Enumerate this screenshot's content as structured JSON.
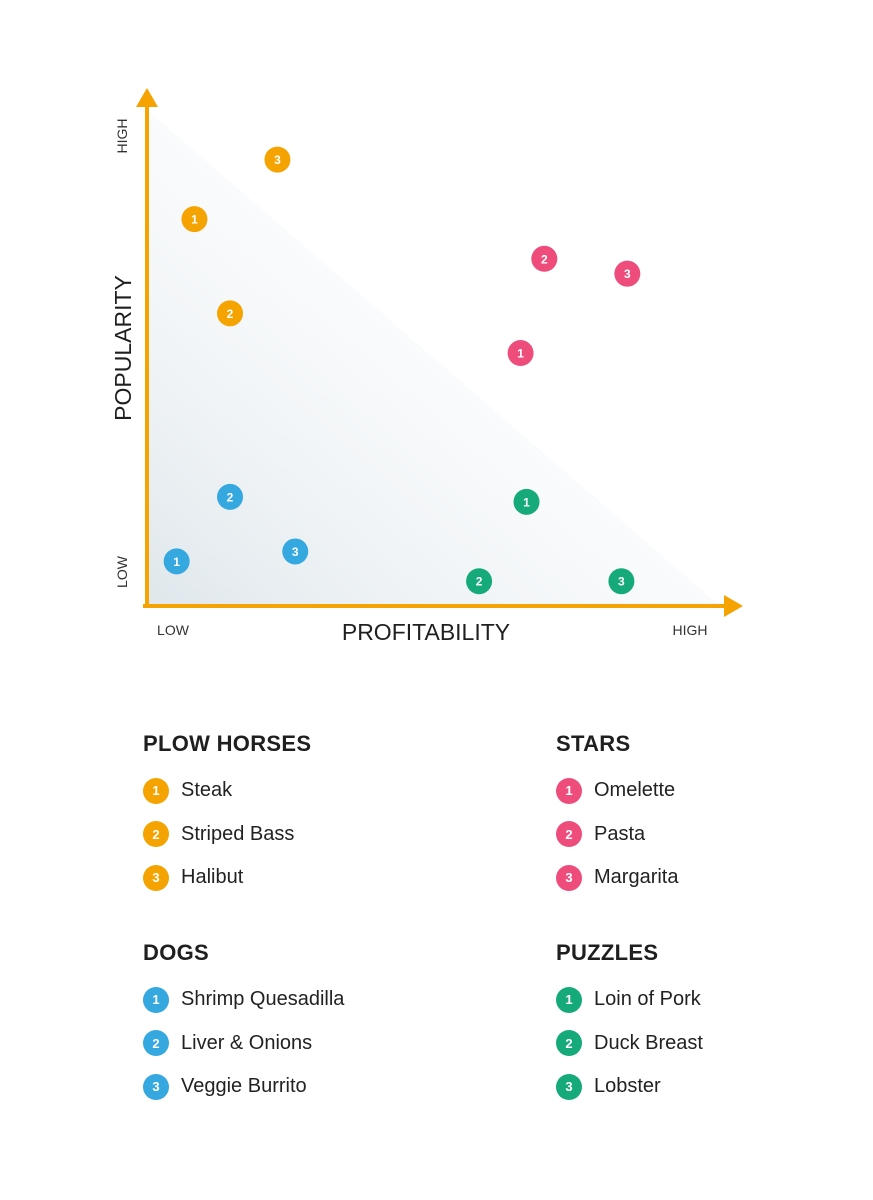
{
  "colors": {
    "axis": "#f5a300",
    "plow_horses": "#f5a300",
    "stars": "#ee4d7c",
    "dogs": "#35a8e0",
    "puzzles": "#16a97a",
    "gradient_dark": "#dfe7ec",
    "gradient_light": "#ffffff"
  },
  "chart_data": {
    "type": "scatter",
    "xlabel": "PROFITABILITY",
    "ylabel": "POPULARITY",
    "x_low_label": "LOW",
    "x_high_label": "HIGH",
    "y_low_label": "LOW",
    "y_high_label": "HIGH",
    "xlim": [
      0,
      100
    ],
    "ylim": [
      0,
      100
    ],
    "grid": false,
    "series": [
      {
        "name": "PLOW HORSES",
        "color_key": "plow_horses",
        "points": [
          {
            "label": "1",
            "x": 8,
            "y": 78
          },
          {
            "label": "2",
            "x": 14,
            "y": 59
          },
          {
            "label": "3",
            "x": 22,
            "y": 90
          }
        ]
      },
      {
        "name": "STARS",
        "color_key": "stars",
        "points": [
          {
            "label": "1",
            "x": 63,
            "y": 51
          },
          {
            "label": "2",
            "x": 67,
            "y": 70
          },
          {
            "label": "3",
            "x": 81,
            "y": 67
          }
        ]
      },
      {
        "name": "DOGS",
        "color_key": "dogs",
        "points": [
          {
            "label": "1",
            "x": 5,
            "y": 9
          },
          {
            "label": "2",
            "x": 14,
            "y": 22
          },
          {
            "label": "3",
            "x": 25,
            "y": 11
          }
        ]
      },
      {
        "name": "PUZZLES",
        "color_key": "puzzles",
        "points": [
          {
            "label": "1",
            "x": 64,
            "y": 21
          },
          {
            "label": "2",
            "x": 56,
            "y": 5
          },
          {
            "label": "3",
            "x": 80,
            "y": 5
          }
        ]
      }
    ]
  },
  "legend": {
    "plow_horses": {
      "title": "PLOW HORSES",
      "items": [
        "Steak",
        "Striped Bass",
        "Halibut"
      ]
    },
    "stars": {
      "title": "STARS",
      "items": [
        "Omelette",
        "Pasta",
        "Margarita"
      ]
    },
    "dogs": {
      "title": "DOGS",
      "items": [
        "Shrimp Quesadilla",
        "Liver & Onions",
        "Veggie Burrito"
      ]
    },
    "puzzles": {
      "title": "PUZZLES",
      "items": [
        "Loin of Pork",
        "Duck Breast",
        "Lobster"
      ]
    }
  }
}
